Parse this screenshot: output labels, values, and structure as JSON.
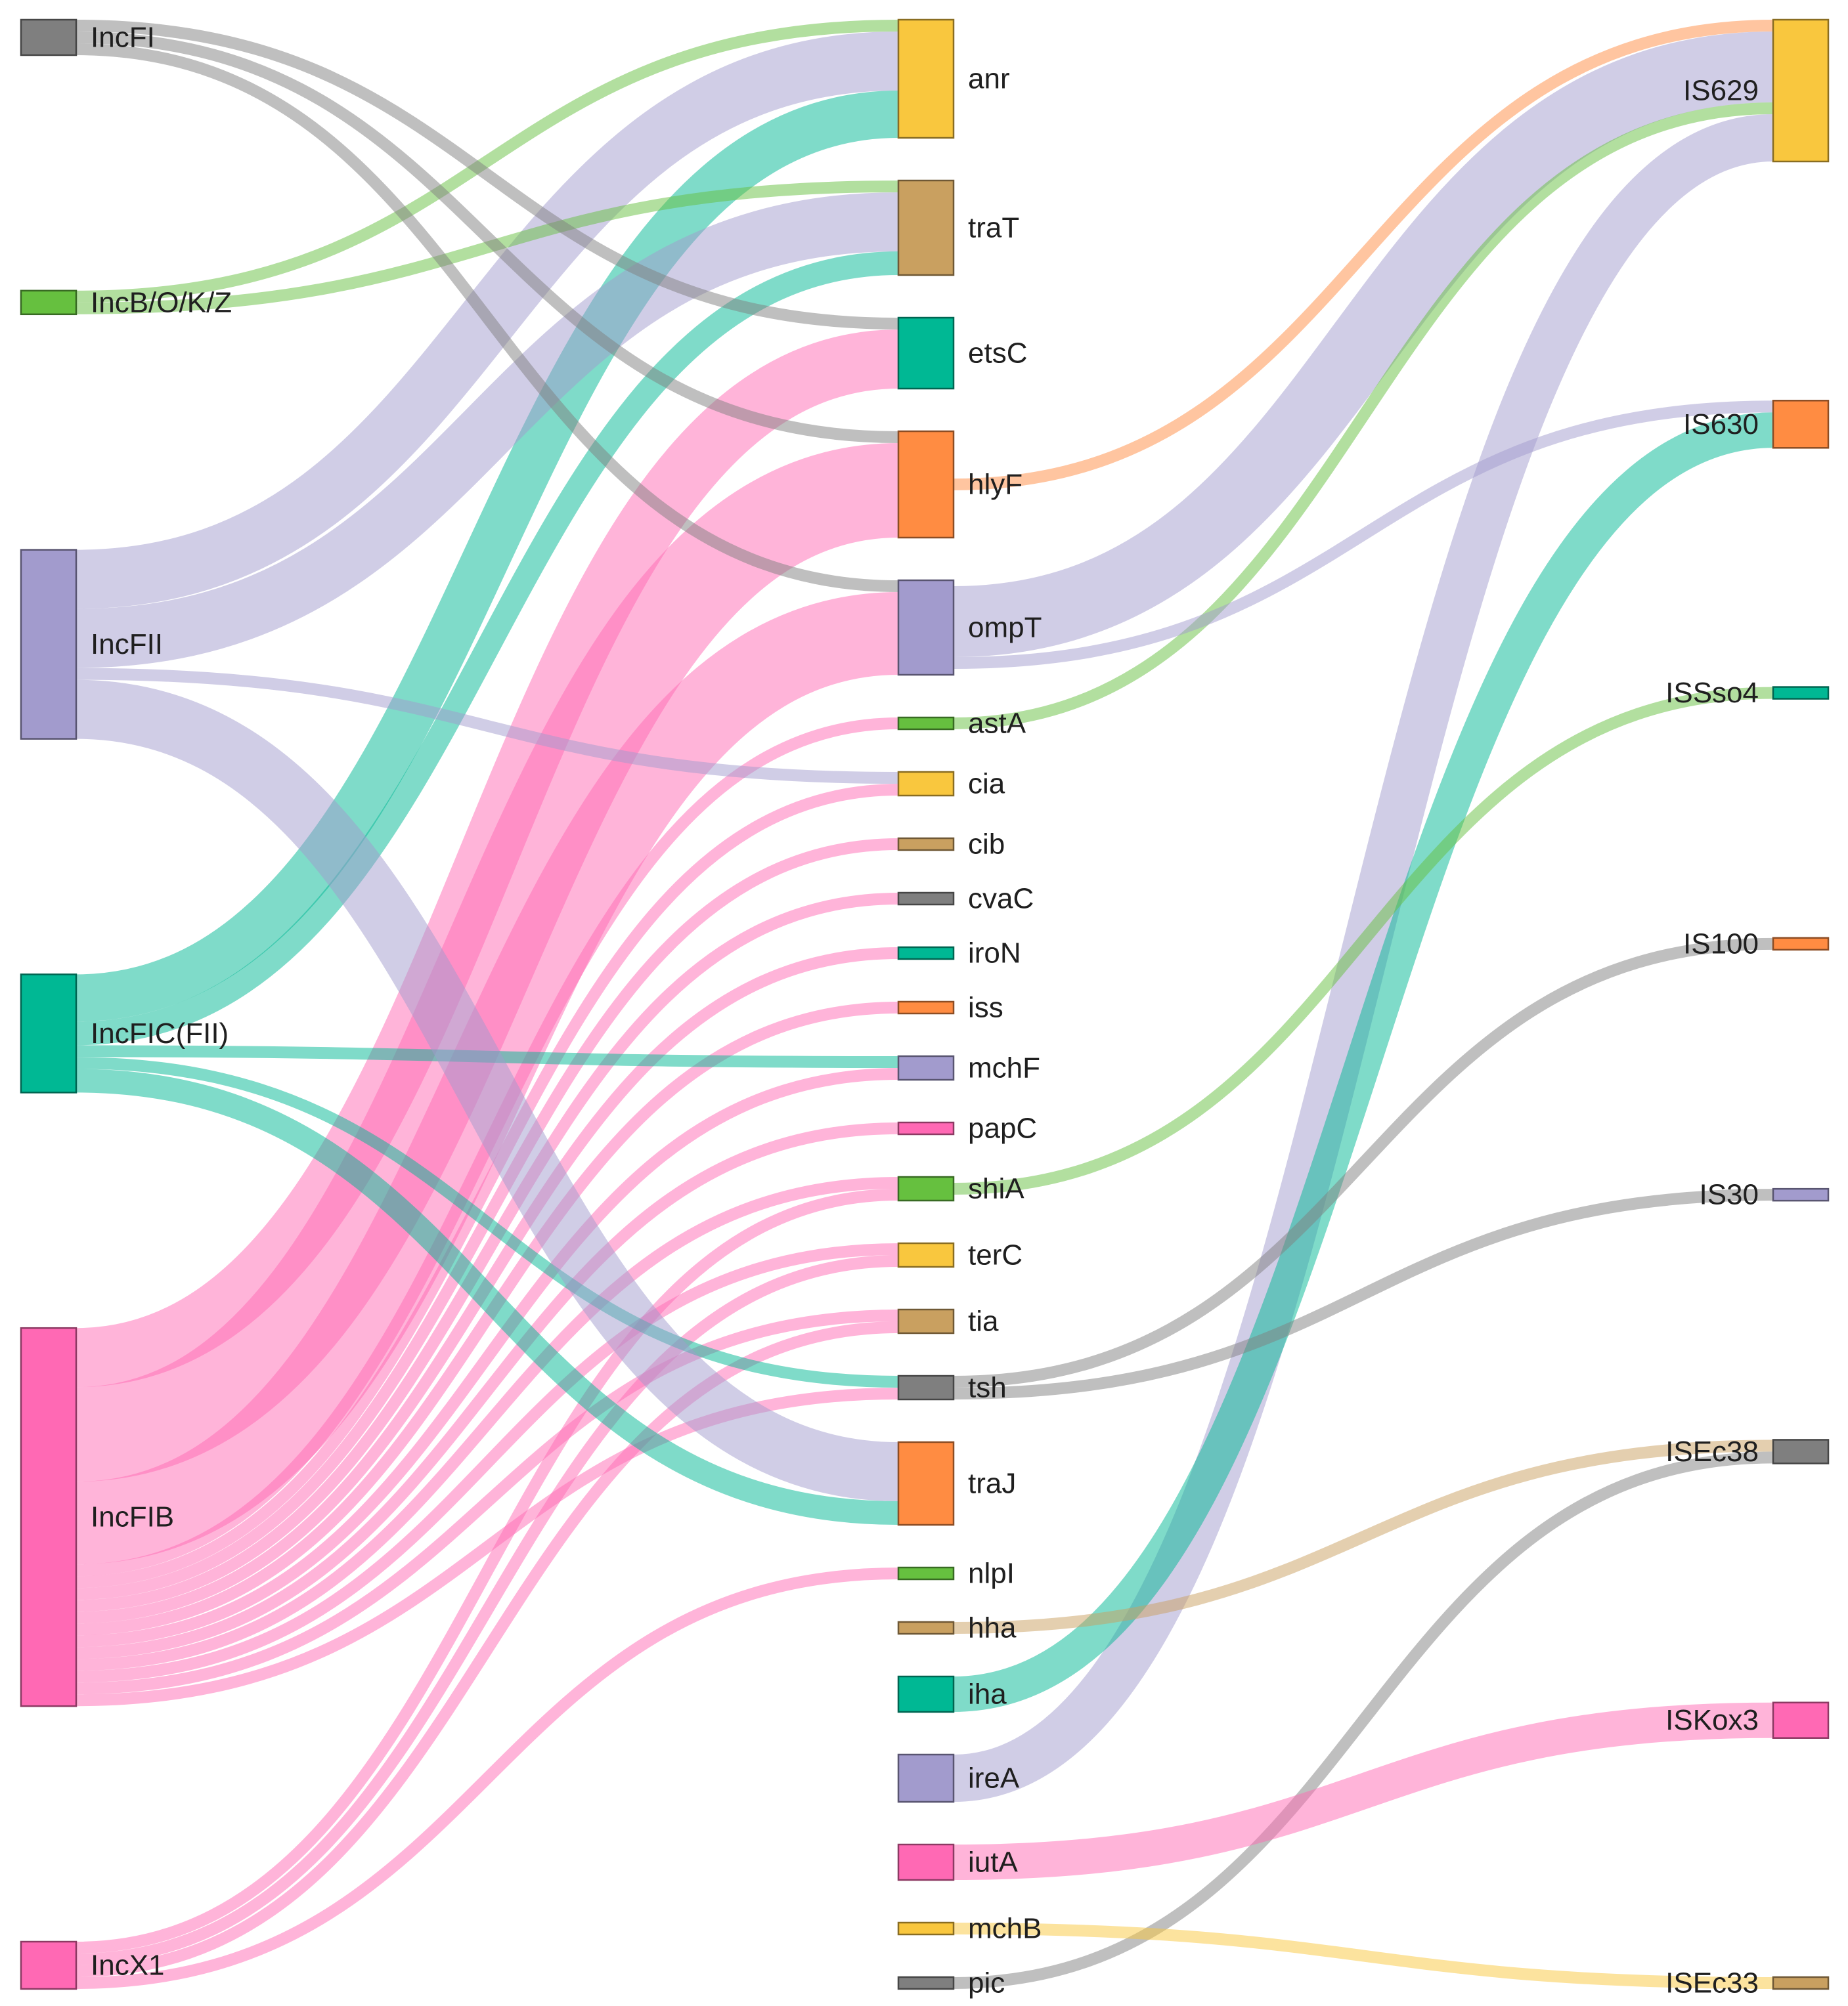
{
  "chart_data": {
    "type": "sankey",
    "title": "",
    "columns": [
      [
        "IncFI",
        "IncB/O/K/Z",
        "IncFII",
        "IncFIC(FII)",
        "IncFIB",
        "IncX1"
      ],
      [
        "anr",
        "traT",
        "etsC",
        "hlyF",
        "ompT",
        "astA",
        "cia",
        "cib",
        "cvaC",
        "iroN",
        "iss",
        "mchF",
        "papC",
        "shiA",
        "terC",
        "tia",
        "tsh",
        "traJ",
        "nlpI",
        "hha",
        "iha",
        "ireA",
        "iutA",
        "mchB",
        "pic"
      ],
      [
        "IS629",
        "IS630",
        "ISSso4",
        "IS100",
        "IS30",
        "ISEc38",
        "ISKox3",
        "ISEc33"
      ]
    ],
    "nodes": [
      {
        "id": "IncFI",
        "label": "IncFI",
        "color": "#7f7f7f"
      },
      {
        "id": "IncB/O/K/Z",
        "label": "IncB/O/K/Z",
        "color": "#66c03f"
      },
      {
        "id": "IncFII",
        "label": "IncFII",
        "color": "#a29bcd"
      },
      {
        "id": "IncFIC(FII)",
        "label": "IncFIC(FII)",
        "color": "#00b894"
      },
      {
        "id": "IncFIB",
        "label": "IncFIB",
        "color": "#ff69b4"
      },
      {
        "id": "IncX1",
        "label": "IncX1",
        "color": "#ff69b4"
      },
      {
        "id": "anr",
        "label": "anr",
        "color": "#f9c73e"
      },
      {
        "id": "traT",
        "label": "traT",
        "color": "#c9a060"
      },
      {
        "id": "etsC",
        "label": "etsC",
        "color": "#00b894"
      },
      {
        "id": "hlyF",
        "label": "hlyF",
        "color": "#ff8c42"
      },
      {
        "id": "ompT",
        "label": "ompT",
        "color": "#a29bcd"
      },
      {
        "id": "astA",
        "label": "astA",
        "color": "#66c03f"
      },
      {
        "id": "cia",
        "label": "cia",
        "color": "#f9c73e"
      },
      {
        "id": "cib",
        "label": "cib",
        "color": "#c9a060"
      },
      {
        "id": "cvaC",
        "label": "cvaC",
        "color": "#7f7f7f"
      },
      {
        "id": "iroN",
        "label": "iroN",
        "color": "#00b894"
      },
      {
        "id": "iss",
        "label": "iss",
        "color": "#ff8c42"
      },
      {
        "id": "mchF",
        "label": "mchF",
        "color": "#a29bcd"
      },
      {
        "id": "papC",
        "label": "papC",
        "color": "#ff69b4"
      },
      {
        "id": "shiA",
        "label": "shiA",
        "color": "#66c03f"
      },
      {
        "id": "terC",
        "label": "terC",
        "color": "#f9c73e"
      },
      {
        "id": "tia",
        "label": "tia",
        "color": "#c9a060"
      },
      {
        "id": "tsh",
        "label": "tsh",
        "color": "#7f7f7f"
      },
      {
        "id": "traJ",
        "label": "traJ",
        "color": "#ff8c42"
      },
      {
        "id": "nlpI",
        "label": "nlpI",
        "color": "#66c03f"
      },
      {
        "id": "hha",
        "label": "hha",
        "color": "#c9a060"
      },
      {
        "id": "iha",
        "label": "iha",
        "color": "#00b894"
      },
      {
        "id": "ireA",
        "label": "ireA",
        "color": "#a29bcd"
      },
      {
        "id": "iutA",
        "label": "iutA",
        "color": "#ff69b4"
      },
      {
        "id": "mchB",
        "label": "mchB",
        "color": "#f9c73e"
      },
      {
        "id": "pic",
        "label": "pic",
        "color": "#7f7f7f"
      },
      {
        "id": "IS629",
        "label": "IS629",
        "color": "#f9c73e"
      },
      {
        "id": "IS630",
        "label": "IS630",
        "color": "#ff8c42"
      },
      {
        "id": "ISSso4",
        "label": "ISSso4",
        "color": "#00b894"
      },
      {
        "id": "IS100",
        "label": "IS100",
        "color": "#ff8c42"
      },
      {
        "id": "IS30",
        "label": "IS30",
        "color": "#a29bcd"
      },
      {
        "id": "ISEc38",
        "label": "ISEc38",
        "color": "#7f7f7f"
      },
      {
        "id": "ISKox3",
        "label": "ISKox3",
        "color": "#ff69b4"
      },
      {
        "id": "ISEc33",
        "label": "ISEc33",
        "color": "#c9a060"
      }
    ],
    "links": [
      {
        "source": "IncFII",
        "target": "anr",
        "value": 5
      },
      {
        "source": "IncFII",
        "target": "traT",
        "value": 5
      },
      {
        "source": "IncFII",
        "target": "cia",
        "value": 1
      },
      {
        "source": "IncFII",
        "target": "traJ",
        "value": 5
      },
      {
        "source": "IncFI",
        "target": "etsC",
        "value": 1
      },
      {
        "source": "IncFI",
        "target": "hlyF",
        "value": 1
      },
      {
        "source": "IncFI",
        "target": "ompT",
        "value": 1
      },
      {
        "source": "IncB/O/K/Z",
        "target": "anr",
        "value": 1
      },
      {
        "source": "IncB/O/K/Z",
        "target": "traT",
        "value": 1
      },
      {
        "source": "IncFIC(FII)",
        "target": "anr",
        "value": 4
      },
      {
        "source": "IncFIC(FII)",
        "target": "traT",
        "value": 2
      },
      {
        "source": "IncFIC(FII)",
        "target": "mchF",
        "value": 1
      },
      {
        "source": "IncFIC(FII)",
        "target": "tsh",
        "value": 1
      },
      {
        "source": "IncFIC(FII)",
        "target": "traJ",
        "value": 2
      },
      {
        "source": "IncFIB",
        "target": "etsC",
        "value": 5
      },
      {
        "source": "IncFIB",
        "target": "hlyF",
        "value": 8
      },
      {
        "source": "IncFIB",
        "target": "ompT",
        "value": 7
      },
      {
        "source": "IncFIB",
        "target": "astA",
        "value": 1
      },
      {
        "source": "IncFIB",
        "target": "cia",
        "value": 1
      },
      {
        "source": "IncFIB",
        "target": "cib",
        "value": 1
      },
      {
        "source": "IncFIB",
        "target": "cvaC",
        "value": 1
      },
      {
        "source": "IncFIB",
        "target": "iroN",
        "value": 1
      },
      {
        "source": "IncFIB",
        "target": "iss",
        "value": 1
      },
      {
        "source": "IncFIB",
        "target": "mchF",
        "value": 1
      },
      {
        "source": "IncFIB",
        "target": "papC",
        "value": 1
      },
      {
        "source": "IncFIB",
        "target": "shiA",
        "value": 1
      },
      {
        "source": "IncFIB",
        "target": "terC",
        "value": 1
      },
      {
        "source": "IncFIB",
        "target": "tia",
        "value": 1
      },
      {
        "source": "IncFIB",
        "target": "tsh",
        "value": 1
      },
      {
        "source": "IncX1",
        "target": "shiA",
        "value": 1
      },
      {
        "source": "IncX1",
        "target": "terC",
        "value": 1
      },
      {
        "source": "IncX1",
        "target": "tia",
        "value": 1
      },
      {
        "source": "IncX1",
        "target": "nlpI",
        "value": 1
      },
      {
        "source": "hlyF",
        "target": "IS629",
        "value": 1
      },
      {
        "source": "ompT",
        "target": "IS629",
        "value": 6
      },
      {
        "source": "ompT",
        "target": "IS630",
        "value": 1
      },
      {
        "source": "astA",
        "target": "IS629",
        "value": 1
      },
      {
        "source": "ireA",
        "target": "IS629",
        "value": 4
      },
      {
        "source": "iha",
        "target": "IS630",
        "value": 3
      },
      {
        "source": "shiA",
        "target": "ISSso4",
        "value": 1
      },
      {
        "source": "tsh",
        "target": "IS100",
        "value": 1
      },
      {
        "source": "tsh",
        "target": "IS30",
        "value": 1
      },
      {
        "source": "hha",
        "target": "ISEc38",
        "value": 1
      },
      {
        "source": "pic",
        "target": "ISEc38",
        "value": 1
      },
      {
        "source": "iutA",
        "target": "ISKox3",
        "value": 3
      },
      {
        "source": "mchB",
        "target": "ISEc33",
        "value": 1
      }
    ]
  }
}
